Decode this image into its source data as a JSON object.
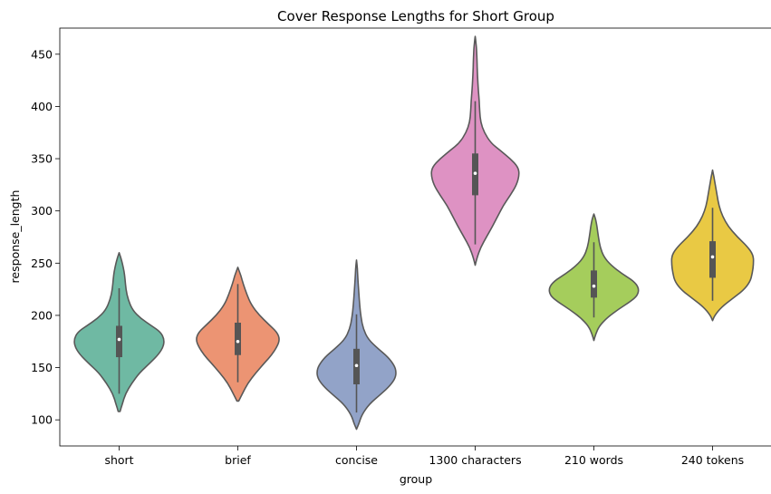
{
  "chart_data": {
    "type": "violin",
    "title": "Cover Response Lengths for Short Group",
    "xlabel": "group",
    "ylabel": "response_length",
    "ylim": [
      75,
      475
    ],
    "yticks": [
      100,
      150,
      200,
      250,
      300,
      350,
      400,
      450
    ],
    "grid": false,
    "legend": "none",
    "categories": [
      "short",
      "brief",
      "concise",
      "1300 characters",
      "210 words",
      "240 tokens"
    ],
    "colors": [
      "#6fb9a3",
      "#ec9473",
      "#92a3c8",
      "#de92c3",
      "#a5cd5c",
      "#e9c944"
    ],
    "outline_color": "#595959",
    "violins": [
      {
        "category": "short",
        "min": 108,
        "max": 260,
        "q1": 160,
        "median": 177,
        "q3": 190,
        "whisker_low": 125,
        "whisker_high": 226,
        "profile": [
          [
            108,
            0.02
          ],
          [
            115,
            0.07
          ],
          [
            125,
            0.14
          ],
          [
            135,
            0.28
          ],
          [
            145,
            0.45
          ],
          [
            155,
            0.7
          ],
          [
            163,
            0.88
          ],
          [
            170,
            0.98
          ],
          [
            177,
            1.0
          ],
          [
            184,
            0.92
          ],
          [
            190,
            0.72
          ],
          [
            197,
            0.48
          ],
          [
            205,
            0.3
          ],
          [
            215,
            0.2
          ],
          [
            225,
            0.15
          ],
          [
            235,
            0.13
          ],
          [
            242,
            0.11
          ],
          [
            250,
            0.07
          ],
          [
            255,
            0.04
          ],
          [
            260,
            0.0
          ]
        ]
      },
      {
        "category": "brief",
        "min": 118,
        "max": 246,
        "q1": 162,
        "median": 175,
        "q3": 193,
        "whisker_low": 136,
        "whisker_high": 230,
        "profile": [
          [
            118,
            0.02
          ],
          [
            125,
            0.1
          ],
          [
            135,
            0.22
          ],
          [
            145,
            0.4
          ],
          [
            155,
            0.6
          ],
          [
            162,
            0.75
          ],
          [
            170,
            0.87
          ],
          [
            177,
            0.93
          ],
          [
            184,
            0.87
          ],
          [
            192,
            0.67
          ],
          [
            200,
            0.48
          ],
          [
            210,
            0.3
          ],
          [
            220,
            0.2
          ],
          [
            230,
            0.12
          ],
          [
            238,
            0.07
          ],
          [
            246,
            0.0
          ]
        ]
      },
      {
        "category": "concise",
        "min": 91,
        "max": 253,
        "q1": 134,
        "median": 152,
        "q3": 168,
        "whisker_low": 107,
        "whisker_high": 201,
        "profile": [
          [
            91,
            0.0
          ],
          [
            96,
            0.05
          ],
          [
            105,
            0.12
          ],
          [
            115,
            0.28
          ],
          [
            125,
            0.55
          ],
          [
            133,
            0.75
          ],
          [
            140,
            0.86
          ],
          [
            146,
            0.88
          ],
          [
            152,
            0.84
          ],
          [
            160,
            0.7
          ],
          [
            168,
            0.48
          ],
          [
            177,
            0.26
          ],
          [
            187,
            0.15
          ],
          [
            198,
            0.1
          ],
          [
            210,
            0.07
          ],
          [
            222,
            0.05
          ],
          [
            235,
            0.03
          ],
          [
            245,
            0.02
          ],
          [
            253,
            0.0
          ]
        ]
      },
      {
        "category": "1300 characters",
        "min": 248,
        "max": 467,
        "q1": 315,
        "median": 336,
        "q3": 355,
        "whisker_low": 268,
        "whisker_high": 405,
        "profile": [
          [
            248,
            0.0
          ],
          [
            255,
            0.04
          ],
          [
            265,
            0.12
          ],
          [
            275,
            0.25
          ],
          [
            285,
            0.38
          ],
          [
            295,
            0.5
          ],
          [
            305,
            0.62
          ],
          [
            315,
            0.78
          ],
          [
            325,
            0.92
          ],
          [
            335,
            0.98
          ],
          [
            342,
            0.95
          ],
          [
            350,
            0.78
          ],
          [
            358,
            0.55
          ],
          [
            365,
            0.35
          ],
          [
            375,
            0.2
          ],
          [
            385,
            0.12
          ],
          [
            395,
            0.1
          ],
          [
            405,
            0.09
          ],
          [
            415,
            0.07
          ],
          [
            430,
            0.05
          ],
          [
            445,
            0.04
          ],
          [
            455,
            0.03
          ],
          [
            462,
            0.015
          ],
          [
            467,
            0.0
          ]
        ]
      },
      {
        "category": "210 words",
        "min": 176,
        "max": 297,
        "q1": 217,
        "median": 228,
        "q3": 243,
        "whisker_low": 198,
        "whisker_high": 270,
        "profile": [
          [
            176,
            0.0
          ],
          [
            182,
            0.04
          ],
          [
            190,
            0.12
          ],
          [
            198,
            0.3
          ],
          [
            206,
            0.55
          ],
          [
            213,
            0.8
          ],
          [
            219,
            0.97
          ],
          [
            226,
            1.0
          ],
          [
            233,
            0.88
          ],
          [
            240,
            0.62
          ],
          [
            248,
            0.38
          ],
          [
            256,
            0.22
          ],
          [
            265,
            0.14
          ],
          [
            275,
            0.1
          ],
          [
            285,
            0.07
          ],
          [
            292,
            0.04
          ],
          [
            297,
            0.0
          ]
        ]
      },
      {
        "category": "240 tokens",
        "min": 195,
        "max": 339,
        "q1": 236,
        "median": 256,
        "q3": 271,
        "whisker_low": 214,
        "whisker_high": 303,
        "profile": [
          [
            195,
            0.0
          ],
          [
            200,
            0.05
          ],
          [
            208,
            0.2
          ],
          [
            216,
            0.44
          ],
          [
            224,
            0.68
          ],
          [
            232,
            0.83
          ],
          [
            240,
            0.88
          ],
          [
            250,
            0.91
          ],
          [
            258,
            0.9
          ],
          [
            266,
            0.77
          ],
          [
            275,
            0.55
          ],
          [
            285,
            0.35
          ],
          [
            295,
            0.22
          ],
          [
            305,
            0.14
          ],
          [
            315,
            0.1
          ],
          [
            325,
            0.06
          ],
          [
            333,
            0.03
          ],
          [
            339,
            0.0
          ]
        ]
      }
    ]
  }
}
